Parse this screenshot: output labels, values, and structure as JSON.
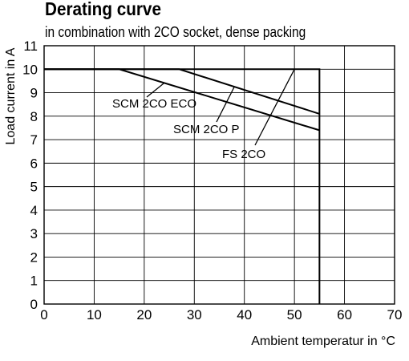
{
  "chart_data": {
    "type": "line",
    "title": "Derating curve",
    "subtitle": "in combination with 2CO socket, dense packing",
    "xlabel": "Ambient temperatur in °C",
    "ylabel": "Load  current in A",
    "xlim": [
      0,
      70
    ],
    "ylim": [
      0,
      11
    ],
    "xticks": [
      0,
      10,
      20,
      30,
      40,
      50,
      60,
      70
    ],
    "yticks": [
      0,
      1,
      2,
      3,
      4,
      5,
      6,
      7,
      8,
      9,
      10,
      11
    ],
    "grid": true,
    "series": [
      {
        "name": "FS 2CO",
        "x": [
          0,
          55,
          55
        ],
        "y": [
          10,
          10,
          0
        ]
      },
      {
        "name": "SCM 2CO ECO",
        "x": [
          0,
          15,
          55
        ],
        "y": [
          10,
          10,
          7.4
        ]
      },
      {
        "name": "SCM 2CO P",
        "x": [
          0,
          27,
          55
        ],
        "y": [
          10,
          10,
          8.1
        ]
      }
    ],
    "annotations": [
      {
        "text": "SCM 2CO ECO",
        "points_to_series": "SCM 2CO ECO"
      },
      {
        "text": "SCM 2CO P",
        "points_to_series": "SCM 2CO P"
      },
      {
        "text": "FS 2CO",
        "points_to_series": "FS 2CO"
      }
    ]
  }
}
